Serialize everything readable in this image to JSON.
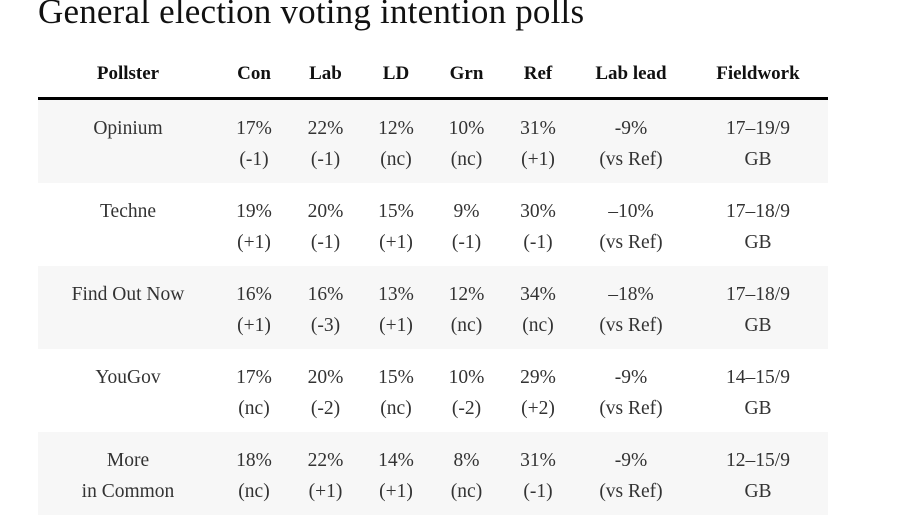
{
  "title": "General election voting intention polls",
  "columns": [
    "Pollster",
    "Con",
    "Lab",
    "LD",
    "Grn",
    "Ref",
    "Lab lead",
    "Fieldwork"
  ],
  "rows": [
    {
      "pollster": [
        "Opinium"
      ],
      "con": [
        "17%",
        "(-1)"
      ],
      "lab": [
        "22%",
        "(-1)"
      ],
      "ld": [
        "12%",
        "(nc)"
      ],
      "grn": [
        "10%",
        "(nc)"
      ],
      "ref": [
        "31%",
        "(+1)"
      ],
      "lead": [
        "-9%",
        "(vs Ref)"
      ],
      "fieldwork": [
        "17–19/9",
        "GB"
      ]
    },
    {
      "pollster": [
        "Techne"
      ],
      "con": [
        "19%",
        "(+1)"
      ],
      "lab": [
        "20%",
        "(-1)"
      ],
      "ld": [
        "15%",
        "(+1)"
      ],
      "grn": [
        "9%",
        "(-1)"
      ],
      "ref": [
        "30%",
        "(-1)"
      ],
      "lead": [
        "–10%",
        "(vs Ref)"
      ],
      "fieldwork": [
        "17–18/9",
        "GB"
      ]
    },
    {
      "pollster": [
        "Find Out Now"
      ],
      "con": [
        "16%",
        "(+1)"
      ],
      "lab": [
        "16%",
        "(-3)"
      ],
      "ld": [
        "13%",
        "(+1)"
      ],
      "grn": [
        "12%",
        "(nc)"
      ],
      "ref": [
        "34%",
        "(nc)"
      ],
      "lead": [
        "–18%",
        "(vs Ref)"
      ],
      "fieldwork": [
        "17–18/9",
        "GB"
      ]
    },
    {
      "pollster": [
        "YouGov"
      ],
      "con": [
        "17%",
        "(nc)"
      ],
      "lab": [
        "20%",
        "(-2)"
      ],
      "ld": [
        "15%",
        "(nc)"
      ],
      "grn": [
        "10%",
        "(-2)"
      ],
      "ref": [
        "29%",
        "(+2)"
      ],
      "lead": [
        "-9%",
        "(vs Ref)"
      ],
      "fieldwork": [
        "14–15/9",
        "GB"
      ]
    },
    {
      "pollster": [
        "More",
        "in Common"
      ],
      "con": [
        "18%",
        "(nc)"
      ],
      "lab": [
        "22%",
        "(+1)"
      ],
      "ld": [
        "14%",
        "(+1)"
      ],
      "grn": [
        "8%",
        "(nc)"
      ],
      "ref": [
        "31%",
        "(-1)"
      ],
      "lead": [
        "-9%",
        "(vs Ref)"
      ],
      "fieldwork": [
        "12–15/9",
        "GB"
      ]
    }
  ]
}
